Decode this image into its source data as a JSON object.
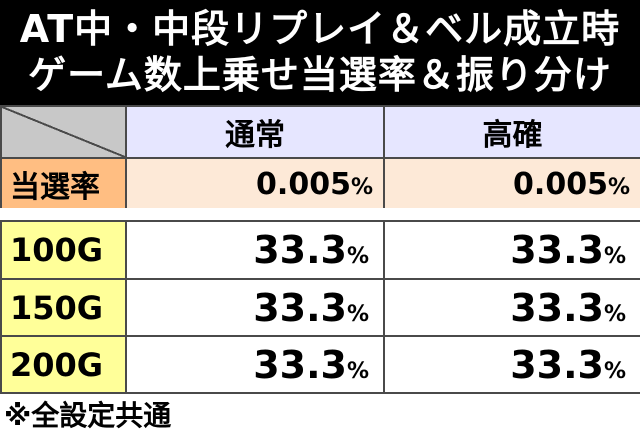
{
  "title": {
    "line1": "AT中・中段リプレイ＆ベル成立時",
    "line2": "ゲーム数上乗せ当選率＆振り分け"
  },
  "table_top": {
    "headers": [
      "通常",
      "高確"
    ],
    "row_label": "当選率",
    "values": [
      {
        "num": "0.005",
        "unit": "%"
      },
      {
        "num": "0.005",
        "unit": "%"
      }
    ]
  },
  "table_bottom": {
    "rows": [
      {
        "label": "100G",
        "values": [
          {
            "num": "33.3",
            "unit": "%"
          },
          {
            "num": "33.3",
            "unit": "%"
          }
        ]
      },
      {
        "label": "150G",
        "values": [
          {
            "num": "33.3",
            "unit": "%"
          },
          {
            "num": "33.3",
            "unit": "%"
          }
        ]
      },
      {
        "label": "200G",
        "values": [
          {
            "num": "33.3",
            "unit": "%"
          },
          {
            "num": "33.3",
            "unit": "%"
          }
        ]
      }
    ]
  },
  "note": "※全設定共通",
  "colors": {
    "title_bg": "#000000",
    "header_bg": "#e6e6ff",
    "rate_label_bg": "#ffbe82",
    "rate_value_bg": "#fde9d7",
    "row_label_bg": "#ffff99"
  }
}
